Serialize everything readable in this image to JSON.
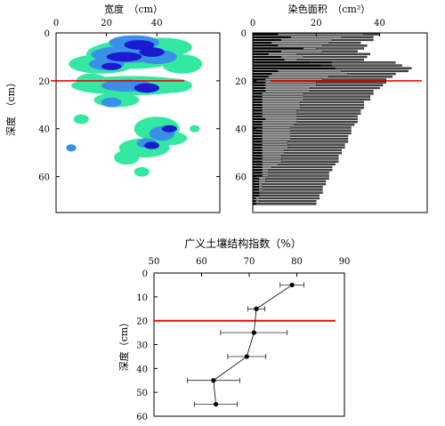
{
  "chart_data": [
    {
      "type": "heatmap",
      "xlabel": "宽度　（cm）",
      "ylabel": "深度　（cm）",
      "x_ticks": [
        0,
        20,
        40
      ],
      "y_ticks": [
        0,
        20,
        40,
        60
      ],
      "xlim": [
        0,
        65
      ],
      "ylim": [
        0,
        75
      ],
      "reference_line_depth": 20,
      "colors": {
        "low": "#33e8a0",
        "mid": "#3a8fe8",
        "high": "#1a1ad0",
        "ref_line": "#e00000"
      }
    },
    {
      "type": "bar",
      "xlabel": "染色面积　（cm²）",
      "x_ticks": [
        0,
        20,
        40
      ],
      "y_ticks": [
        0,
        20,
        40,
        60
      ],
      "xlim": [
        0,
        55
      ],
      "ylim": [
        0,
        75
      ],
      "reference_line_depth": 20,
      "series": [
        {
          "values_black": [
            8,
            12,
            9,
            6,
            8,
            16,
            9,
            5,
            9,
            10,
            25,
            25,
            26,
            8,
            6,
            5,
            4,
            4,
            4,
            4,
            4,
            3,
            3,
            3,
            3,
            3,
            3,
            3,
            3,
            3,
            4,
            3,
            3,
            3,
            3,
            3,
            3,
            3,
            3,
            3,
            3,
            3,
            3,
            3,
            3,
            3,
            3,
            3,
            3,
            3,
            3,
            2,
            2,
            2,
            2,
            2,
            2,
            2,
            1,
            1,
            1
          ],
          "values_gray": [
            35,
            28,
            25,
            24,
            22,
            20,
            22,
            14,
            16,
            14,
            18,
            22,
            22,
            28,
            30,
            24,
            22,
            20,
            20,
            18,
            18,
            16,
            16,
            16,
            15,
            15,
            15,
            14,
            14,
            14,
            14,
            14,
            13,
            12,
            12,
            12,
            12,
            12,
            11,
            11,
            11,
            10,
            10,
            9,
            9,
            9,
            8,
            6,
            5,
            5,
            5,
            4,
            4,
            3,
            3,
            3,
            2,
            2,
            2,
            2,
            1
          ],
          "totals": [
            40,
            38,
            38,
            34,
            36,
            35,
            33,
            37,
            36,
            35,
            45,
            47,
            50,
            49,
            45,
            44,
            42,
            42,
            41,
            40,
            38,
            38,
            37,
            37,
            35,
            35,
            35,
            34,
            34,
            33,
            33,
            33,
            32,
            31,
            31,
            31,
            30,
            30,
            30,
            29,
            29,
            28,
            28,
            27,
            27,
            27,
            26,
            25,
            25,
            24,
            24,
            24,
            23,
            23,
            22,
            22,
            22,
            21,
            21,
            20,
            20
          ]
        }
      ],
      "colors": {
        "black": "#000000",
        "gray": "#a0a0a0",
        "dark": "#505050",
        "ref_line": "#e00000"
      }
    },
    {
      "type": "line",
      "title": "广义土壤结构指数（%）",
      "ylabel": "深度（cm）",
      "x_ticks": [
        50,
        60,
        70,
        80,
        90
      ],
      "y_ticks": [
        0,
        10,
        20,
        30,
        40,
        50,
        60
      ],
      "xlim": [
        50,
        90
      ],
      "ylim": [
        0,
        60
      ],
      "reference_line_depth": 20,
      "series": [
        {
          "x": [
            79,
            71.5,
            71,
            69.5,
            62.5,
            63
          ],
          "y": [
            5,
            15,
            25,
            35,
            45,
            55
          ],
          "err": [
            2.5,
            1.8,
            7,
            4,
            5.5,
            4.5
          ]
        }
      ],
      "colors": {
        "line": "#000000",
        "ref_line": "#e00000"
      }
    }
  ]
}
